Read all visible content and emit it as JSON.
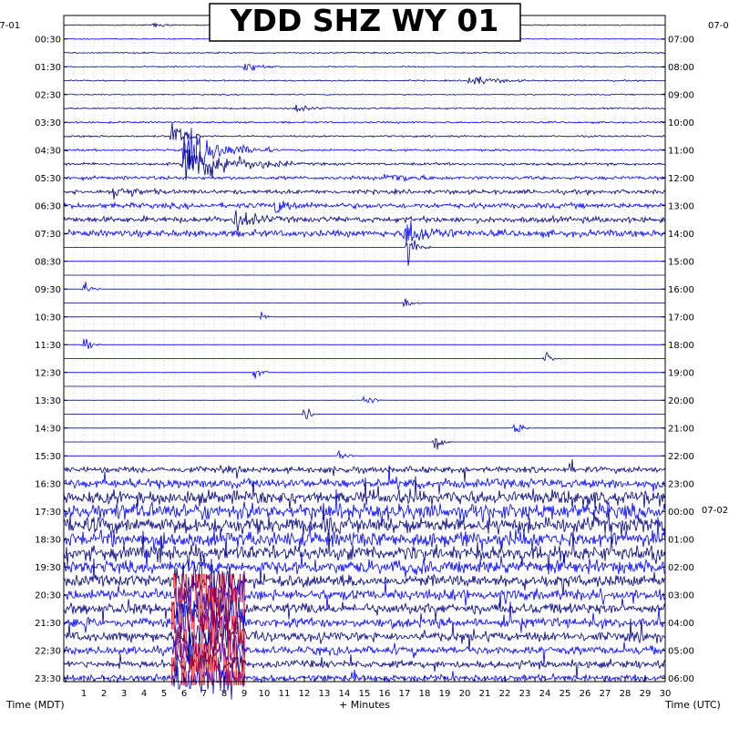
{
  "chart_data": {
    "type": "helicorder",
    "title": "YDD SHZ WY 01",
    "xlabel": "+ Minutes",
    "left_axis_label": "Time (MDT)",
    "right_axis_label": "Time (UTC)",
    "left_date_label": "07-01",
    "right_date_label_top": "07-0",
    "right_date_label_mid": "07-02",
    "xlim": [
      0,
      30
    ],
    "x_ticks": [
      1,
      2,
      3,
      4,
      5,
      6,
      7,
      8,
      9,
      10,
      11,
      12,
      13,
      14,
      15,
      16,
      17,
      18,
      19,
      20,
      21,
      22,
      23,
      24,
      25,
      26,
      27,
      28,
      29,
      30
    ],
    "x_tick_labels": [
      "1",
      "2",
      "3",
      "4",
      "5",
      "6",
      "7",
      "8",
      "9",
      "10",
      "11",
      "12",
      "13",
      "14",
      "15",
      "16",
      "17",
      "18",
      "19",
      "20",
      "21",
      "22",
      "23",
      "24",
      "25",
      "26",
      "27",
      "28",
      "29",
      "30"
    ],
    "left_tick_labels": [
      "00:30",
      "01:30",
      "02:30",
      "03:30",
      "04:30",
      "05:30",
      "06:30",
      "07:30",
      "08:30",
      "09:30",
      "10:30",
      "11:30",
      "12:30",
      "13:30",
      "14:30",
      "15:30",
      "16:30",
      "17:30",
      "18:30",
      "19:30",
      "20:30",
      "21:30",
      "22:30",
      "23:30"
    ],
    "right_tick_labels": [
      "07:00",
      "08:00",
      "09:00",
      "10:00",
      "11:00",
      "12:00",
      "13:00",
      "14:00",
      "15:00",
      "16:00",
      "17:00",
      "18:00",
      "19:00",
      "20:00",
      "21:00",
      "22:00",
      "23:00",
      "00:00",
      "01:00",
      "02:00",
      "03:00",
      "04:00",
      "05:00",
      "06:00"
    ],
    "trace_count": 48,
    "trace_minutes": 30,
    "trace_colors": [
      "#00007f",
      "#0000ff"
    ],
    "clip_color": "#ff0000",
    "grid": true,
    "noise_levels": [
      0.4,
      0.4,
      0.5,
      0.5,
      0.5,
      0.5,
      0.6,
      0.7,
      0.7,
      0.8,
      1.0,
      1.3,
      1.6,
      2.0,
      2.2,
      2.5,
      0.05,
      0.05,
      0.05,
      0.05,
      0.05,
      0.05,
      0.05,
      0.05,
      0.05,
      0.05,
      0.05,
      0.05,
      0.05,
      0.05,
      0.05,
      0.05,
      2.2,
      3.5,
      5.0,
      6.0,
      6.0,
      6.0,
      5.5,
      5.0,
      4.5,
      4.0,
      4.0,
      3.5,
      3.5,
      3.0,
      2.8,
      2.5
    ],
    "events": [
      {
        "trace": 0,
        "minute": 4.5,
        "amp": 2.0,
        "dur": 0.4
      },
      {
        "trace": 1,
        "minute": 16.0,
        "amp": 1.5,
        "dur": 0.3
      },
      {
        "trace": 3,
        "minute": 9.0,
        "amp": 6.0,
        "dur": 0.6
      },
      {
        "trace": 4,
        "minute": 20.2,
        "amp": 5.0,
        "dur": 1.0
      },
      {
        "trace": 6,
        "minute": 11.5,
        "amp": 3.0,
        "dur": 0.6
      },
      {
        "trace": 8,
        "minute": 5.4,
        "amp": 16.0,
        "dur": 0.5
      },
      {
        "trace": 9,
        "minute": 6.0,
        "amp": 20.0,
        "dur": 1.5
      },
      {
        "trace": 10,
        "minute": 6.0,
        "amp": 22.0,
        "dur": 1.8
      },
      {
        "trace": 11,
        "minute": 16.0,
        "amp": 5.0,
        "dur": 1.0
      },
      {
        "trace": 12,
        "minute": 2.5,
        "amp": 6.0,
        "dur": 0.8
      },
      {
        "trace": 13,
        "minute": 10.5,
        "amp": 6.0,
        "dur": 0.8
      },
      {
        "trace": 14,
        "minute": 8.5,
        "amp": 9.0,
        "dur": 0.7
      },
      {
        "trace": 15,
        "minute": 17.0,
        "amp": 12.0,
        "dur": 1.0
      },
      {
        "trace": 16,
        "minute": 17.1,
        "amp": 14.0,
        "dur": 0.4
      },
      {
        "trace": 19,
        "minute": 1.0,
        "amp": 8.0,
        "dur": 0.3
      },
      {
        "trace": 20,
        "minute": 17.0,
        "amp": 6.0,
        "dur": 0.3
      },
      {
        "trace": 21,
        "minute": 9.8,
        "amp": 5.0,
        "dur": 0.3
      },
      {
        "trace": 23,
        "minute": 1.0,
        "amp": 7.0,
        "dur": 0.3
      },
      {
        "trace": 24,
        "minute": 24.0,
        "amp": 7.0,
        "dur": 0.3
      },
      {
        "trace": 25,
        "minute": 9.5,
        "amp": 8.0,
        "dur": 0.3
      },
      {
        "trace": 27,
        "minute": 15.0,
        "amp": 9.0,
        "dur": 0.3
      },
      {
        "trace": 28,
        "minute": 12.0,
        "amp": 7.0,
        "dur": 0.3
      },
      {
        "trace": 29,
        "minute": 22.5,
        "amp": 8.0,
        "dur": 0.3
      },
      {
        "trace": 30,
        "minute": 18.5,
        "amp": 9.0,
        "dur": 0.3
      },
      {
        "trace": 31,
        "minute": 13.7,
        "amp": 7.0,
        "dur": 0.3
      }
    ],
    "clipped_region": {
      "trace_start": 40,
      "trace_end": 47,
      "minute_start": 5.5,
      "minute_end": 9.0
    }
  }
}
